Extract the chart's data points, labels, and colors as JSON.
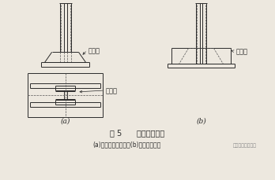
{
  "bg_color": "#ede8df",
  "line_color": "#2a2a2a",
  "dash_color": "#555555",
  "title": "图 5      柱脚底板加固",
  "caption_a": "(a)增设加劲肋加固；",
  "caption_b": "(b)浇混凝土加固",
  "caption_suffix": "公号／钢结构技术",
  "label_a": "(a)",
  "label_b": "(b)",
  "label_rib_top": "加劲肋",
  "label_rib_bot": "加劲肋",
  "label_concrete": "混凝土",
  "title_fs": 7.0,
  "caption_fs": 5.5,
  "label_fs": 6.0,
  "sub_label_fs": 6.5
}
